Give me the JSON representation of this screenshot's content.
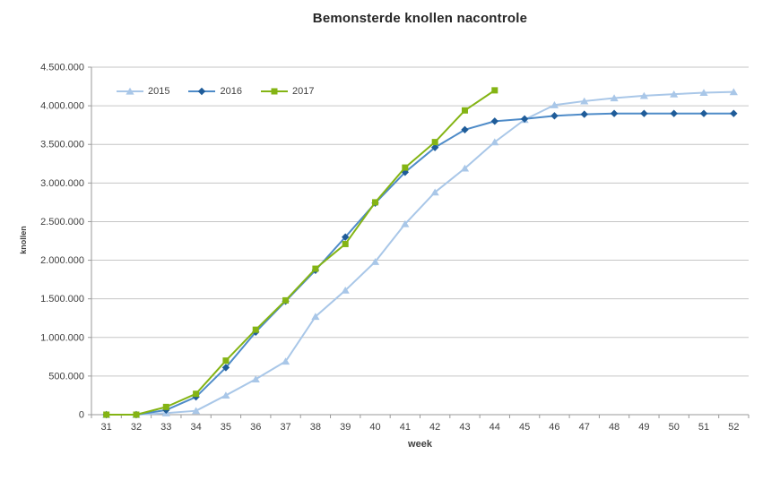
{
  "title": "Bemonsterde knollen nacontrole",
  "chart_data": {
    "type": "line",
    "title": "Bemonsterde knollen nacontrole",
    "xlabel": "week",
    "ylabel": "knollen",
    "x": [
      "31",
      "32",
      "33",
      "34",
      "35",
      "36",
      "37",
      "38",
      "39",
      "40",
      "41",
      "42",
      "43",
      "44",
      "45",
      "46",
      "47",
      "48",
      "49",
      "50",
      "51",
      "52"
    ],
    "ylim": [
      0,
      4500000
    ],
    "y_tick_step": 500000,
    "y_tick_labels": [
      "0",
      "500.000",
      "1.000.000",
      "1.500.000",
      "2.000.000",
      "2.500.000",
      "3.000.000",
      "3.500.000",
      "4.000.000",
      "4.500.000"
    ],
    "grid": "horizontal",
    "legend_position": "inside-top-left",
    "series": [
      {
        "name": "2015",
        "marker": "triangle",
        "color": "#A9C7E8",
        "marker_color": "#A9C7E8",
        "values": [
          0,
          0,
          20000,
          50000,
          250000,
          460000,
          690000,
          1270000,
          1610000,
          1980000,
          2470000,
          2880000,
          3190000,
          3530000,
          3820000,
          4010000,
          4060000,
          4100000,
          4130000,
          4150000,
          4170000,
          4180000
        ]
      },
      {
        "name": "2016",
        "marker": "diamond",
        "color": "#4E8BC8",
        "marker_color": "#1F5C99",
        "values": [
          0,
          0,
          60000,
          230000,
          610000,
          1070000,
          1470000,
          1870000,
          2300000,
          2740000,
          3140000,
          3460000,
          3690000,
          3800000,
          3830000,
          3870000,
          3890000,
          3900000,
          3900000,
          3900000,
          3900000,
          3900000
        ]
      },
      {
        "name": "2017",
        "marker": "square",
        "color": "#84B414",
        "marker_color": "#84B414",
        "values": [
          0,
          0,
          100000,
          270000,
          700000,
          1100000,
          1480000,
          1890000,
          2210000,
          2750000,
          3200000,
          3530000,
          3940000,
          4200000,
          null,
          null,
          null,
          null,
          null,
          null,
          null,
          null
        ]
      }
    ]
  },
  "colors": {
    "grid": "#C6C6C6",
    "axis": "#9A9A9A",
    "tick_text": "#3F3F3F",
    "title_text": "#262626",
    "background": "#FFFFFF"
  }
}
